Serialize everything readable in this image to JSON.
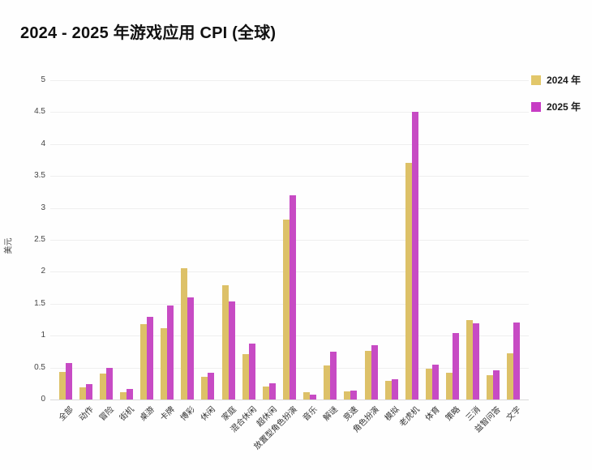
{
  "title": "2024 - 2025 年游戏应用 CPI (全球)",
  "colors": {
    "bar_2024": "#ddc168",
    "bar_2025": "#c74bc4",
    "grid_line": "#efefef",
    "axis_line": "#d9d9d9",
    "text": "#333333",
    "title_text": "#111111"
  },
  "legend": [
    {
      "label": "2024 年",
      "color": "#e2c76a"
    },
    {
      "label": "2025 年",
      "color": "#c73cc4"
    }
  ],
  "chart_data": {
    "type": "bar",
    "title": "2024 - 2025 年游戏应用 CPI (全球)",
    "xlabel": "",
    "ylabel": "美元",
    "ylim": [
      0,
      5
    ],
    "ytick_step": 0.5,
    "yticks": [
      0,
      0.5,
      1,
      1.5,
      2,
      2.5,
      3,
      3.5,
      4,
      4.5,
      5
    ],
    "grid": true,
    "legend_position": "top-right",
    "categories": [
      "全部",
      "动作",
      "冒险",
      "街机",
      "桌游",
      "卡牌",
      "博彩",
      "休闲",
      "家庭",
      "混合休闲",
      "超休闲",
      "放置型角色扮演",
      "音乐",
      "解谜",
      "竞速",
      "角色扮演",
      "模拟",
      "老虎机",
      "体育",
      "策略",
      "三消",
      "益智问答",
      "文字"
    ],
    "series": [
      {
        "name": "2024 年",
        "color": "#ddc168",
        "values": [
          0.43,
          0.19,
          0.41,
          0.12,
          1.18,
          1.12,
          2.06,
          0.36,
          1.79,
          0.71,
          0.2,
          2.82,
          0.11,
          0.53,
          0.13,
          0.76,
          0.29,
          3.7,
          0.48,
          0.42,
          1.25,
          0.38,
          0.72
        ]
      },
      {
        "name": "2025 年",
        "color": "#c74bc4",
        "values": [
          0.57,
          0.24,
          0.49,
          0.17,
          1.3,
          1.47,
          1.6,
          0.42,
          1.54,
          0.87,
          0.25,
          3.2,
          0.08,
          0.75,
          0.14,
          0.85,
          0.32,
          4.5,
          0.55,
          1.04,
          1.19,
          0.46,
          1.2
        ]
      }
    ]
  }
}
